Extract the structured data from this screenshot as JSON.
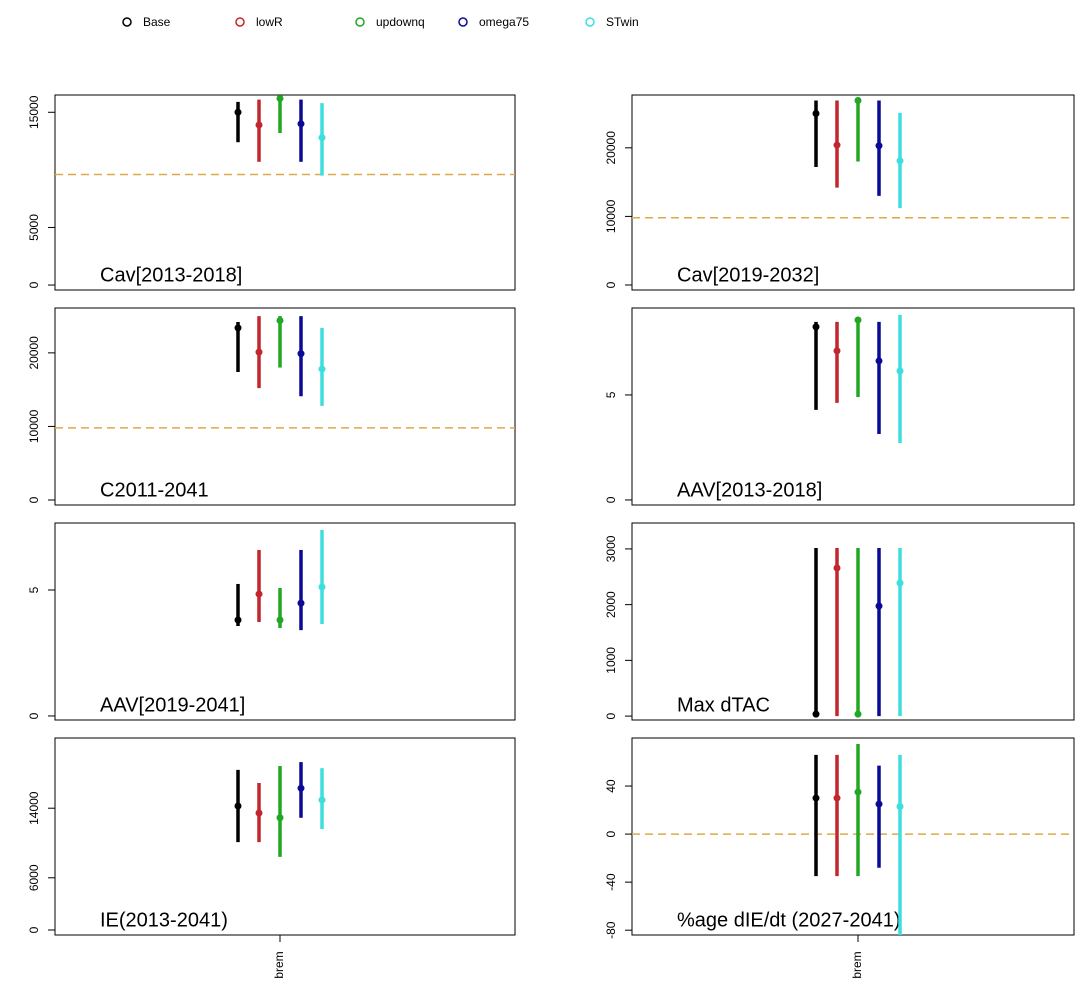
{
  "legend": {
    "names": [
      "Base",
      "lowR",
      "updownq",
      "omega75",
      "STwin"
    ],
    "colors": [
      "#000000",
      "#c1272d",
      "#22a722",
      "#0a0a96",
      "#3fdede"
    ]
  },
  "chart_data": [
    {
      "type": "interval",
      "label": "Cav[2013-2018]",
      "ylim": [
        -430,
        16500
      ],
      "yticks": [
        0,
        5000,
        15000
      ],
      "hline": 9600,
      "series": [
        {
          "low": 12400,
          "mid": 15000,
          "high": 15900
        },
        {
          "low": 10700,
          "mid": 13900,
          "high": 16100
        },
        {
          "low": 13200,
          "mid": 16200,
          "high": 16300
        },
        {
          "low": 10700,
          "mid": 14000,
          "high": 16100
        },
        {
          "low": 9500,
          "mid": 12800,
          "high": 15800
        }
      ]
    },
    {
      "type": "interval",
      "label": "Cav[2019-2032]",
      "ylim": [
        -730,
        27700
      ],
      "yticks": [
        0,
        10000,
        20000
      ],
      "hline": 9800,
      "series": [
        {
          "low": 17200,
          "mid": 25000,
          "high": 26900
        },
        {
          "low": 14200,
          "mid": 20400,
          "high": 26900
        },
        {
          "low": 18000,
          "mid": 26900,
          "high": 27200
        },
        {
          "low": 13000,
          "mid": 20300,
          "high": 26900
        },
        {
          "low": 11200,
          "mid": 18100,
          "high": 25100
        }
      ]
    },
    {
      "type": "interval",
      "label": "C2011-2041",
      "ylim": [
        -680,
        26100
      ],
      "yticks": [
        0,
        10000,
        20000
      ],
      "hline": 9800,
      "series": [
        {
          "low": 17400,
          "mid": 23400,
          "high": 24200
        },
        {
          "low": 15200,
          "mid": 20100,
          "high": 25000
        },
        {
          "low": 18000,
          "mid": 24400,
          "high": 25000
        },
        {
          "low": 14100,
          "mid": 19900,
          "high": 25000
        },
        {
          "low": 12800,
          "mid": 17800,
          "high": 23400
        }
      ]
    },
    {
      "type": "interval",
      "label": "AAV[2013-2018]",
      "ylim": [
        -0.24,
        9.14
      ],
      "yticks": [
        0,
        5
      ],
      "series": [
        {
          "low": 4.29,
          "mid": 8.24,
          "high": 8.48
        },
        {
          "low": 4.62,
          "mid": 7.1,
          "high": 8.48
        },
        {
          "low": 4.9,
          "mid": 8.57,
          "high": 8.57
        },
        {
          "low": 3.14,
          "mid": 6.62,
          "high": 8.48
        },
        {
          "low": 2.71,
          "mid": 6.14,
          "high": 8.81
        }
      ]
    },
    {
      "type": "interval",
      "label": "AAV[2019-2041]",
      "ylim": [
        -0.16,
        7.66
      ],
      "yticks": [
        0,
        5
      ],
      "series": [
        {
          "low": 3.57,
          "mid": 3.81,
          "high": 5.24
        },
        {
          "low": 3.73,
          "mid": 4.84,
          "high": 6.59
        },
        {
          "low": 3.49,
          "mid": 3.81,
          "high": 5.08
        },
        {
          "low": 3.41,
          "mid": 4.48,
          "high": 6.59
        },
        {
          "low": 3.65,
          "mid": 5.12,
          "high": 7.38
        }
      ]
    },
    {
      "type": "interval",
      "label": "Max dTAC",
      "ylim": [
        -70,
        3465
      ],
      "yticks": [
        0,
        1000,
        2000,
        3000
      ],
      "series": [
        {
          "low": 0,
          "mid": 36,
          "high": 3016
        },
        {
          "low": 0,
          "mid": 2657,
          "high": 3016
        },
        {
          "low": 0,
          "mid": 36,
          "high": 3016
        },
        {
          "low": 0,
          "mid": 1975,
          "high": 3016
        },
        {
          "low": 0,
          "mid": 2388,
          "high": 3016
        }
      ]
    },
    {
      "type": "interval",
      "label": "IE(2013-2041)",
      "ylim": [
        -575,
        22070
      ],
      "yticks": [
        0,
        6000,
        14000
      ],
      "categories": [
        "brem"
      ],
      "series": [
        {
          "low": 10100,
          "mid": 14250,
          "high": 18400
        },
        {
          "low": 10100,
          "mid": 13450,
          "high": 16900
        },
        {
          "low": 8400,
          "mid": 12900,
          "high": 18850
        },
        {
          "low": 12900,
          "mid": 16300,
          "high": 19300
        },
        {
          "low": 11600,
          "mid": 14950,
          "high": 18600
        }
      ]
    },
    {
      "type": "interval",
      "label": "%age dIE/dt (2027-2041)",
      "ylim": [
        -84,
        80
      ],
      "yticks": [
        -80,
        -40,
        0,
        40
      ],
      "hline": 0,
      "categories": [
        "brem"
      ],
      "series": [
        {
          "low": -35,
          "mid": 30,
          "high": 66
        },
        {
          "low": -35,
          "mid": 30,
          "high": 66
        },
        {
          "low": -35,
          "mid": 35,
          "high": 75
        },
        {
          "low": -28,
          "mid": 25,
          "high": 57
        },
        {
          "low": -84,
          "mid": 23,
          "high": 66
        }
      ]
    }
  ]
}
